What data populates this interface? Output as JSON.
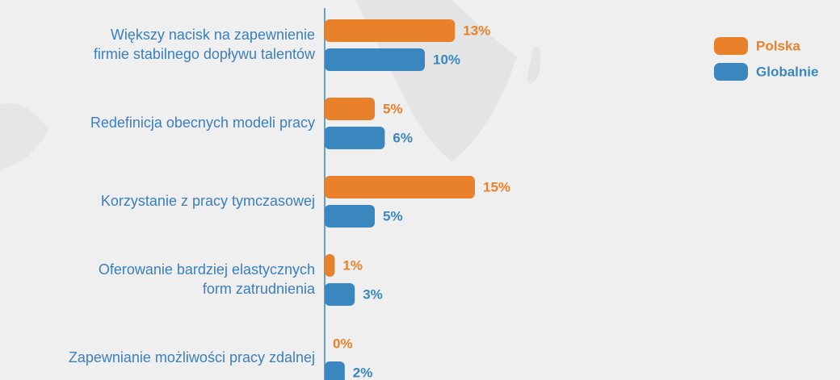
{
  "chart_data": {
    "type": "bar",
    "orientation": "horizontal",
    "categories": [
      [
        "Większy nacisk na zapewnienie",
        "firmie stabilnego dopływu talentów"
      ],
      [
        "Redefinicja obecnych modeli pracy"
      ],
      [
        "Korzystanie z pracy tymczasowej"
      ],
      [
        "Oferowanie bardziej elastycznych",
        "form zatrudnienia"
      ],
      [
        "Zapewnianie możliwości pracy zdalnej"
      ]
    ],
    "series": [
      {
        "name": "Polska",
        "color": "#e8812a",
        "values": [
          13,
          5,
          15,
          1,
          0
        ],
        "value_labels": [
          "13%",
          "5%",
          "15%",
          "1%",
          "0%"
        ]
      },
      {
        "name": "Globalnie",
        "color": "#3a86be",
        "values": [
          10,
          6,
          5,
          3,
          2
        ],
        "value_labels": [
          "10%",
          "6%",
          "5%",
          "3%",
          "2%"
        ]
      }
    ],
    "legend": "top-right"
  }
}
